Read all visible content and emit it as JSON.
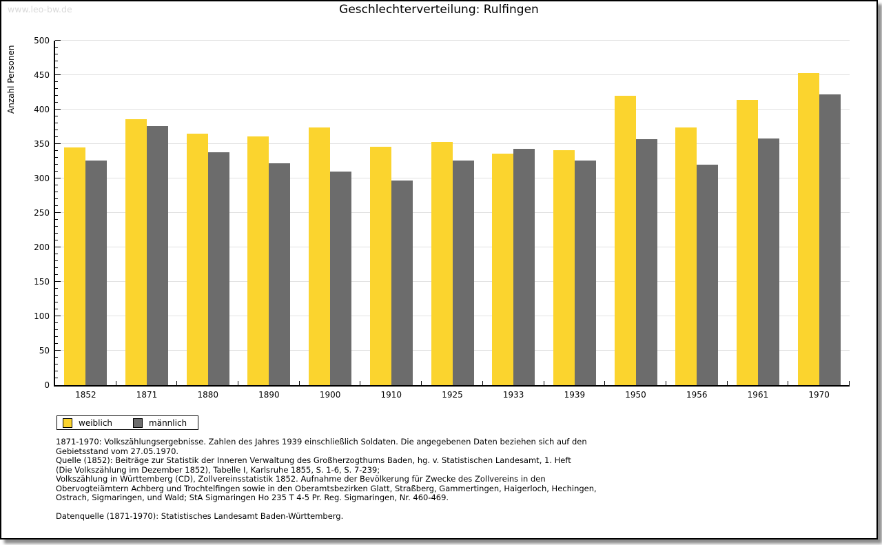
{
  "page": {
    "watermark": "www.leo-bw.de",
    "title": "Geschlechterverteilung: Rulfingen"
  },
  "chart_data": {
    "type": "bar",
    "title": "Geschlechterverteilung: Rulfingen",
    "xlabel": "",
    "ylabel": "Anzahl Personen",
    "ylim": [
      0,
      500
    ],
    "ytick_interval": 50,
    "y_minor_tick_interval": 10,
    "grid": true,
    "legend_position": "below-left",
    "categories": [
      "1852",
      "1871",
      "1880",
      "1890",
      "1900",
      "1910",
      "1925",
      "1933",
      "1939",
      "1950",
      "1956",
      "1961",
      "1970"
    ],
    "series": [
      {
        "name": "weiblich",
        "color": "#FBD42E",
        "values": [
          345,
          386,
          365,
          361,
          374,
          346,
          353,
          336,
          341,
          420,
          374,
          414,
          453
        ]
      },
      {
        "name": "männlich",
        "color": "#6C6C6C",
        "values": [
          326,
          376,
          338,
          322,
          310,
          297,
          326,
          343,
          326,
          357,
          320,
          358,
          422
        ]
      }
    ]
  },
  "footnotes": {
    "lines": [
      "1871-1970: Volkszählungsergebnisse. Zahlen des Jahres 1939 einschließlich Soldaten. Die angegebenen Daten beziehen sich auf den",
      "Gebietsstand vom 27.05.1970.",
      "Quelle (1852): Beiträge zur Statistik der Inneren Verwaltung des Großherzogthums Baden, hg. v. Statistischen Landesamt, 1. Heft",
      "(Die Volkszählung im Dezember 1852), Tabelle I, Karlsruhe 1855, S. 1-6, S. 7-239;",
      "Volkszählung in Württemberg (CD), Zollvereinsstatistik 1852. Aufnahme der Bevölkerung für Zwecke des Zollvereins in den",
      "Obervogteiämtern Achberg und Trochtelfingen sowie in den Oberamtsbezirken Glatt, Straßberg, Gammertingen, Haigerloch, Hechingen,",
      "Ostrach, Sigmaringen, und Wald; StA Sigmaringen Ho 235 T 4-5 Pr. Reg. Sigmaringen, Nr. 460-469."
    ],
    "datasource": "Datenquelle (1871-1970): Statistisches Landesamt Baden-Württemberg."
  },
  "colors": {
    "female_bar": "#FBD42E",
    "male_bar": "#6C6C6C",
    "gridline": "#E1E1E1",
    "axis": "#000000",
    "watermark_text": "#D9D9D9",
    "page_border": "#000000"
  }
}
